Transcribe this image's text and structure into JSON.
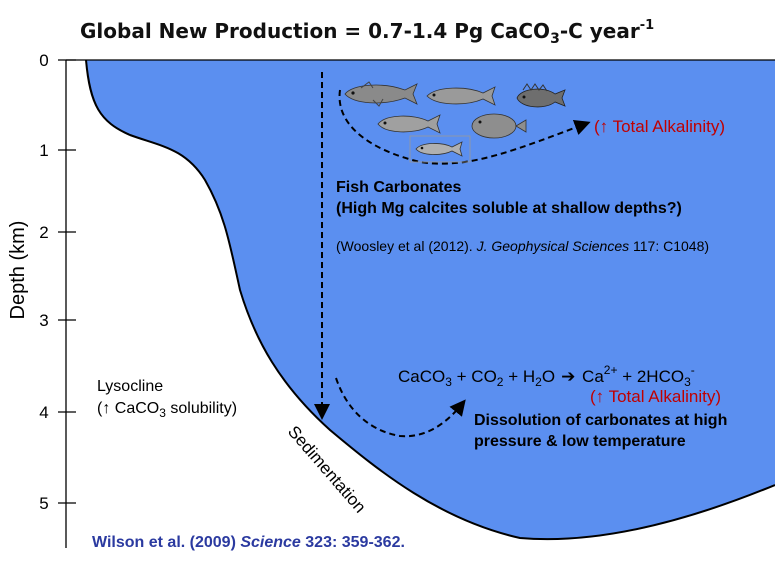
{
  "title": {
    "main": "Global New Production = 0.7-1.4 Pg CaCO",
    "sub3": "3",
    "tail": "-C year",
    "sup": "-1"
  },
  "y_axis": {
    "label": "Depth (km)",
    "ticks": [
      "0",
      "1",
      "2",
      "3",
      "4",
      "5"
    ]
  },
  "colors": {
    "ocean_top": "#ffffff",
    "ocean_bottom": "#5b8ff0",
    "red_text": "#c00000",
    "citation_blue": "#2b3aa0"
  },
  "fish_label": {
    "line1": "Fish Carbonates",
    "line2": "(High Mg calcites soluble at shallow depths?)"
  },
  "fish_reference": {
    "prefix": "(Woosley et al (2012). ",
    "journal": "J. Geophysical Sciences",
    "suffix": " 117: C1048)"
  },
  "total_alkalinity_top": "(↑ Total Alkalinity)",
  "lysocline": {
    "line1": "Lysocline",
    "line2_prefix": "(↑ CaCO",
    "line2_sub": "3",
    "line2_suffix": " solubility)"
  },
  "equation": {
    "p1": "CaCO",
    "s1": "3",
    "p2": " + CO",
    "s2": "2",
    "p3": " + H",
    "s3": "2",
    "p4": "O",
    "arrow": "➔",
    "p5": " Ca",
    "sup1": "2+",
    "p6": " + 2HCO",
    "s4": "3",
    "sup2": "-"
  },
  "total_alkalinity_bottom": "(↑ Total Alkalinity)",
  "dissolution": {
    "line1": "Dissolution of carbonates at high",
    "line2": "pressure & low temperature"
  },
  "sedimentation": "Sedimentation",
  "citation": {
    "authors": "Wilson et al. (2009) ",
    "journal": "Science",
    "rest": " 323: 359-362."
  },
  "icons": [
    "tuna-fish-icon",
    "salmon-fish-icon",
    "scorpionfish-icon",
    "cod-fish-icon",
    "flatfish-icon",
    "small-fish-icon"
  ]
}
